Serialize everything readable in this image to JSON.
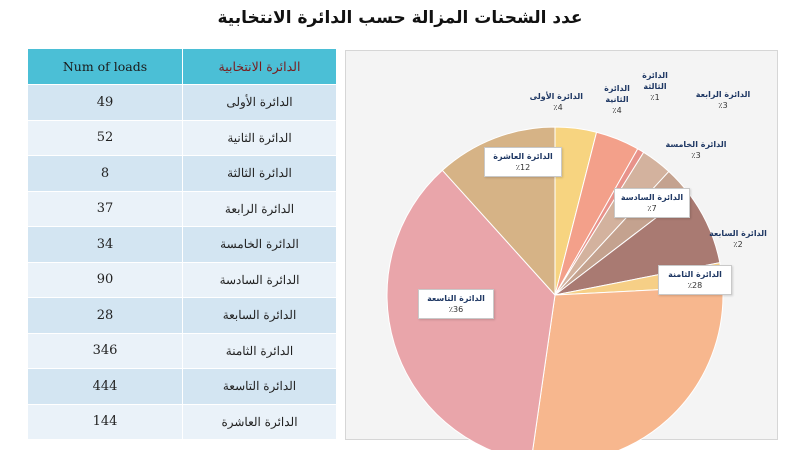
{
  "title": "عدد الشحنات المزالة حسب الدائرة الانتخابية",
  "table": {
    "headers": [
      "Num of loads",
      "الدائرة الانتخابية"
    ],
    "rows": [
      {
        "value": "49",
        "name": "الدائرة الأولى"
      },
      {
        "value": "52",
        "name": "الدائرة الثانية"
      },
      {
        "value": "8",
        "name": "الدائرة الثالثة"
      },
      {
        "value": "37",
        "name": "الدائرة الرابعة"
      },
      {
        "value": "34",
        "name": "الدائرة الخامسة"
      },
      {
        "value": "90",
        "name": "الدائرة السادسة"
      },
      {
        "value": "28",
        "name": "الدائرة السابعة"
      },
      {
        "value": "346",
        "name": "الدائرة الثامنة"
      },
      {
        "value": "444",
        "name": "الدائرة التاسعة"
      },
      {
        "value": "144",
        "name": "الدائرة العاشرة"
      }
    ]
  },
  "chart_data": {
    "type": "pie",
    "categories": [
      "الدائرة الأولى",
      "الدائرة الثانية",
      "الدائرة الثالثة",
      "الدائرة الرابعة",
      "الدائرة الخامسة",
      "الدائرة السادسة",
      "الدائرة السابعة",
      "الدائرة الثامنة",
      "الدائرة التاسعة",
      "الدائرة العاشرة"
    ],
    "values": [
      49,
      52,
      8,
      37,
      34,
      90,
      28,
      346,
      444,
      144
    ],
    "data_labels": [
      "٪4",
      "٪4",
      "٪1",
      "٪3",
      "٪3",
      "٪7",
      "٪2",
      "٪28",
      "٪36",
      "٪12"
    ],
    "colors": [
      "#f7d480",
      "#f3a08a",
      "#e8928a",
      "#d3b29e",
      "#c4a28f",
      "#a97a72",
      "#f6cf86",
      "#f7b78e",
      "#e9a5aa",
      "#d6b386"
    ],
    "title": ""
  }
}
